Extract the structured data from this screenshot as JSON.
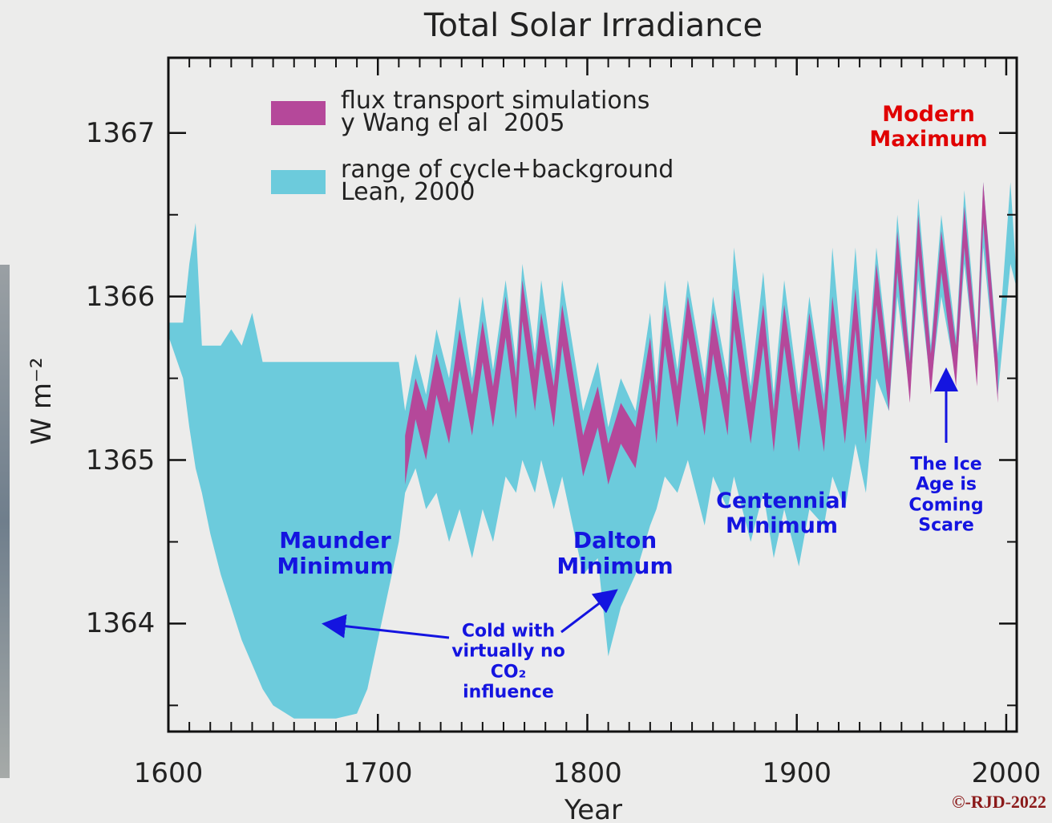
{
  "chart_data": {
    "type": "band",
    "title": "Total Solar Irradiance",
    "x_label": "Year",
    "y_label": "W m⁻²",
    "xlim": [
      1600,
      2005
    ],
    "ylim": [
      1363.34,
      1367.46
    ],
    "xticks": [
      1600,
      1700,
      1800,
      1900,
      2000
    ],
    "xminorticks": [
      1610,
      1620,
      1630,
      1640,
      1650,
      1660,
      1670,
      1680,
      1690,
      1710,
      1720,
      1730,
      1740,
      1750,
      1760,
      1770,
      1780,
      1790,
      1810,
      1820,
      1830,
      1840,
      1850,
      1860,
      1870,
      1880,
      1890,
      1910,
      1920,
      1930,
      1940,
      1950,
      1960,
      1970,
      1980,
      1990
    ],
    "yticks": [
      1364,
      1365,
      1366,
      1367
    ],
    "yminorticks": [
      1363.5,
      1364.5,
      1365.5,
      1366.5
    ],
    "series": [
      {
        "name": "range of cycle+background\nLean, 2000",
        "color": "#6ccbdc",
        "x": [
          1600,
          1607,
          1610,
          1613,
          1616,
          1620,
          1625,
          1630,
          1635,
          1640,
          1645,
          1650,
          1660,
          1670,
          1680,
          1690,
          1695,
          1700,
          1705,
          1710,
          1713,
          1718,
          1723,
          1728,
          1734,
          1739,
          1745,
          1750,
          1755,
          1761,
          1766,
          1769,
          1775,
          1778,
          1784,
          1788,
          1798,
          1805,
          1810,
          1816,
          1823,
          1830,
          1833,
          1837,
          1843,
          1848,
          1856,
          1860,
          1867,
          1870,
          1878,
          1884,
          1889,
          1894,
          1901,
          1906,
          1913,
          1917,
          1923,
          1928,
          1933,
          1938,
          1944,
          1948,
          1954,
          1958,
          1964,
          1969,
          1976,
          1980,
          1986,
          1989,
          1996,
          2002,
          2005
        ],
        "values": [
          1365.84,
          1365.84,
          1366.2,
          1366.45,
          1365.7,
          1365.7,
          1365.7,
          1365.8,
          1365.7,
          1365.9,
          1365.6,
          1365.6,
          1365.6,
          1365.6,
          1365.6,
          1365.6,
          1365.6,
          1365.6,
          1365.6,
          1365.6,
          1365.3,
          1365.65,
          1365.4,
          1365.8,
          1365.5,
          1366.0,
          1365.5,
          1366.0,
          1365.55,
          1366.1,
          1365.6,
          1366.2,
          1365.65,
          1366.1,
          1365.55,
          1366.1,
          1365.3,
          1365.6,
          1365.2,
          1365.5,
          1365.3,
          1365.9,
          1365.45,
          1366.1,
          1365.55,
          1366.1,
          1365.5,
          1366.0,
          1365.5,
          1366.3,
          1365.45,
          1366.15,
          1365.4,
          1366.1,
          1365.4,
          1366.0,
          1365.4,
          1366.3,
          1365.45,
          1366.3,
          1365.45,
          1366.3,
          1365.6,
          1366.5,
          1365.65,
          1366.6,
          1365.7,
          1366.5,
          1365.75,
          1366.65,
          1365.75,
          1366.7,
          1365.65,
          1366.7,
          1366.1
        ],
        "lower": [
          1365.76,
          1365.5,
          1365.2,
          1364.95,
          1364.8,
          1364.55,
          1364.3,
          1364.1,
          1363.9,
          1363.75,
          1363.6,
          1363.5,
          1363.42,
          1363.42,
          1363.42,
          1363.45,
          1363.6,
          1363.9,
          1364.2,
          1364.5,
          1364.8,
          1364.95,
          1364.7,
          1364.8,
          1364.5,
          1364.7,
          1364.4,
          1364.7,
          1364.5,
          1364.9,
          1364.8,
          1365.0,
          1364.8,
          1365.0,
          1364.7,
          1364.9,
          1364.3,
          1364.4,
          1363.8,
          1364.1,
          1364.3,
          1364.6,
          1364.7,
          1364.9,
          1364.8,
          1365.0,
          1364.6,
          1364.9,
          1364.7,
          1364.9,
          1364.5,
          1364.8,
          1364.4,
          1364.7,
          1364.35,
          1364.7,
          1364.6,
          1364.9,
          1364.7,
          1365.1,
          1364.8,
          1365.5,
          1365.3,
          1366.0,
          1365.4,
          1366.1,
          1365.45,
          1366.0,
          1365.5,
          1366.2,
          1365.5,
          1366.3,
          1365.4,
          1366.2,
          1366.05
        ]
      },
      {
        "name": "flux transport simulations\ny Wang el al  2005",
        "color": "#b5489a",
        "x": [
          1713,
          1718,
          1723,
          1728,
          1734,
          1739,
          1745,
          1750,
          1755,
          1761,
          1766,
          1769,
          1775,
          1778,
          1784,
          1788,
          1798,
          1805,
          1810,
          1816,
          1823,
          1830,
          1833,
          1837,
          1843,
          1848,
          1856,
          1860,
          1867,
          1870,
          1878,
          1884,
          1889,
          1894,
          1901,
          1906,
          1913,
          1917,
          1923,
          1928,
          1933,
          1938,
          1944,
          1948,
          1954,
          1958,
          1964,
          1969,
          1976,
          1980,
          1986,
          1989,
          1996
        ],
        "values": [
          1365.15,
          1365.5,
          1365.3,
          1365.65,
          1365.35,
          1365.8,
          1365.4,
          1365.85,
          1365.45,
          1366.0,
          1365.5,
          1366.1,
          1365.55,
          1365.9,
          1365.45,
          1365.95,
          1365.15,
          1365.45,
          1365.1,
          1365.35,
          1365.2,
          1365.75,
          1365.35,
          1365.95,
          1365.45,
          1366.0,
          1365.4,
          1365.9,
          1365.4,
          1366.05,
          1365.35,
          1365.95,
          1365.3,
          1365.95,
          1365.3,
          1365.9,
          1365.3,
          1366.0,
          1365.35,
          1366.05,
          1365.35,
          1366.2,
          1365.55,
          1366.4,
          1365.6,
          1366.5,
          1365.65,
          1366.4,
          1365.7,
          1366.55,
          1365.7,
          1366.7,
          1365.6
        ],
        "lower": [
          1364.85,
          1365.25,
          1365.0,
          1365.4,
          1365.1,
          1365.55,
          1365.15,
          1365.6,
          1365.2,
          1365.75,
          1365.25,
          1365.85,
          1365.3,
          1365.65,
          1365.2,
          1365.7,
          1364.9,
          1365.2,
          1364.85,
          1365.1,
          1364.95,
          1365.5,
          1365.1,
          1365.7,
          1365.2,
          1365.75,
          1365.15,
          1365.65,
          1365.15,
          1365.8,
          1365.1,
          1365.7,
          1365.05,
          1365.7,
          1365.05,
          1365.65,
          1365.05,
          1365.75,
          1365.1,
          1365.8,
          1365.1,
          1365.95,
          1365.3,
          1366.15,
          1365.35,
          1366.25,
          1365.4,
          1366.15,
          1365.45,
          1366.3,
          1365.45,
          1366.45,
          1365.35
        ]
      }
    ],
    "annotations": [
      {
        "text": "Modern\nMaximum",
        "color": "#e00000"
      },
      {
        "text": "Maunder\nMinimum",
        "color": "#1414e0"
      },
      {
        "text": "Dalton\nMinimum",
        "color": "#1414e0"
      },
      {
        "text": "Centennial\nMinimum",
        "color": "#1414e0"
      },
      {
        "text": "The Ice\nAge is\nComing\nScare",
        "color": "#1414e0"
      },
      {
        "text": "Cold with\nvirtually no\nCO₂\ninfluence",
        "color": "#1414e0"
      }
    ],
    "credit": "©-RJD-2022"
  }
}
